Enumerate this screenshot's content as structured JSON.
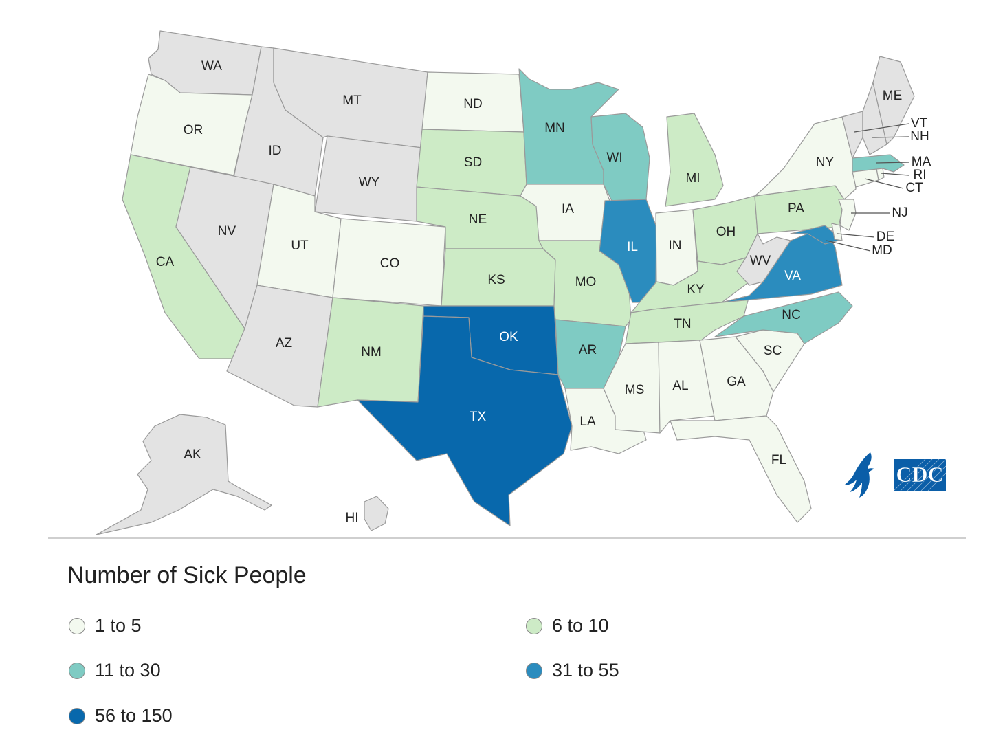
{
  "legend": {
    "title": "Number of Sick People",
    "bins": [
      {
        "label": "1 to 5",
        "color": "#f3f9ef"
      },
      {
        "label": "6 to 10",
        "color": "#cdebc6"
      },
      {
        "label": "11 to 30",
        "color": "#7fcbc3"
      },
      {
        "label": "31 to 55",
        "color": "#2b8cbe"
      },
      {
        "label": "56 to 150",
        "color": "#0868ac"
      }
    ],
    "no_cases_color": "#e3e3e3"
  },
  "states": {
    "WA": {
      "bin": 0
    },
    "OR": {
      "bin": 1
    },
    "CA": {
      "bin": 2
    },
    "ID": {
      "bin": 0
    },
    "NV": {
      "bin": 0
    },
    "MT": {
      "bin": 0
    },
    "WY": {
      "bin": 0
    },
    "UT": {
      "bin": 1
    },
    "AZ": {
      "bin": 0
    },
    "CO": {
      "bin": 1
    },
    "NM": {
      "bin": 2
    },
    "ND": {
      "bin": 1
    },
    "SD": {
      "bin": 2
    },
    "NE": {
      "bin": 2
    },
    "KS": {
      "bin": 2
    },
    "OK": {
      "bin": 5
    },
    "TX": {
      "bin": 5
    },
    "MN": {
      "bin": 3
    },
    "IA": {
      "bin": 1
    },
    "MO": {
      "bin": 2
    },
    "AR": {
      "bin": 3
    },
    "LA": {
      "bin": 1
    },
    "WI": {
      "bin": 3
    },
    "IL": {
      "bin": 4
    },
    "MI": {
      "bin": 2
    },
    "IN": {
      "bin": 1
    },
    "OH": {
      "bin": 2
    },
    "KY": {
      "bin": 2
    },
    "TN": {
      "bin": 2
    },
    "MS": {
      "bin": 1
    },
    "AL": {
      "bin": 1
    },
    "GA": {
      "bin": 1
    },
    "FL": {
      "bin": 1
    },
    "SC": {
      "bin": 1
    },
    "NC": {
      "bin": 3
    },
    "VA": {
      "bin": 4
    },
    "WV": {
      "bin": 0
    },
    "PA": {
      "bin": 2
    },
    "NY": {
      "bin": 1
    },
    "MD": {
      "bin": 4
    },
    "DE": {
      "bin": 1
    },
    "NJ": {
      "bin": 1
    },
    "CT": {
      "bin": 1
    },
    "RI": {
      "bin": 1
    },
    "MA": {
      "bin": 3
    },
    "VT": {
      "bin": 0
    },
    "NH": {
      "bin": 0
    },
    "ME": {
      "bin": 0
    },
    "AK": {
      "bin": 0
    },
    "HI": {
      "bin": 0
    }
  },
  "logo": {
    "text": "CDC"
  }
}
